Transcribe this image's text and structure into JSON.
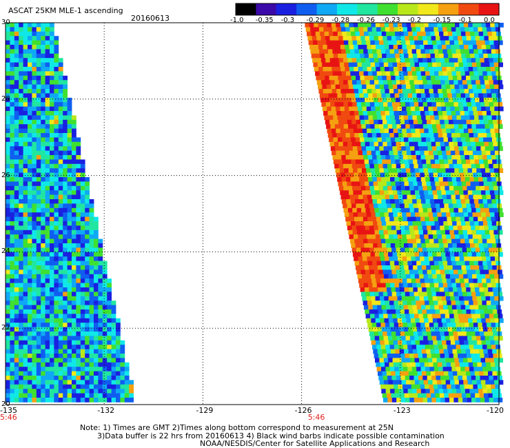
{
  "title": "ASCAT 25KM MLE-1 ascending",
  "date": "20160613",
  "colorbar": {
    "ticks": [
      "-1.0",
      "-0.35",
      "-0.3",
      "-0.29",
      "-0.28",
      "-0.26",
      "-0.23",
      "-0.2",
      "-0.15",
      "-0.1",
      "0.0"
    ],
    "colors": [
      "#000000",
      "#3b0aa8",
      "#1a20e0",
      "#0f5ef0",
      "#0fa8f5",
      "#10e8e8",
      "#20e6a0",
      "#40e030",
      "#b8e81a",
      "#f0e81a",
      "#f5a010",
      "#f04a10",
      "#e81414"
    ]
  },
  "axes": {
    "x_ticks": [
      "-135",
      "-132",
      "-129",
      "-126",
      "-123",
      "-120"
    ],
    "y_ticks": [
      "30",
      "28",
      "26",
      "24",
      "22",
      "20"
    ],
    "x_range": [
      -135,
      -120
    ],
    "y_range": [
      20,
      30
    ]
  },
  "time_labels": [
    {
      "text": "5:46",
      "lon": -135
    },
    {
      "text": "5:46",
      "lon": -125.6
    }
  ],
  "notes": {
    "line1": "Note: 1) Times are GMT 2)Times along bottom correspond to measurement at 25N",
    "line2": "3)Data buffer is 22 hrs from 20160613 4) Black wind barbs indicate possible contamination",
    "line3": "NOAA/NESDIS/Center for Satellite Applications and Research"
  },
  "swaths": [
    {
      "name": "west",
      "top_lat": 30,
      "bottom_lat": 20.1,
      "top_lon": [
        -135,
        -133.6
      ],
      "bottom_lon": [
        -135,
        -131.1
      ]
    },
    {
      "name": "east",
      "top_lat": 30,
      "bottom_lat": 20.1,
      "top_lon": [
        -125.9,
        -120
      ],
      "bottom_lon": [
        -123.5,
        -120
      ]
    }
  ]
}
